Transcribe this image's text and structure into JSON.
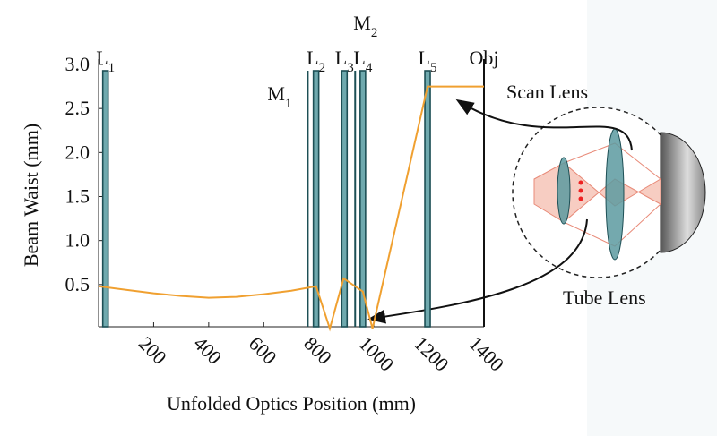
{
  "chart_data": {
    "type": "line",
    "x_label": "Unfolded Optics Position (mm)",
    "y_label": "Beam Waist (mm)",
    "x": [
      0,
      100,
      200,
      300,
      400,
      500,
      600,
      700,
      790,
      840,
      890,
      960,
      995,
      1195,
      1400
    ],
    "values": [
      0.48,
      0.44,
      0.4,
      0.37,
      0.35,
      0.36,
      0.39,
      0.43,
      0.48,
      0.0,
      0.57,
      0.42,
      0.0,
      2.75,
      2.75
    ],
    "color": "#f0a030",
    "xlim": [
      0,
      1400
    ],
    "ylim": [
      0,
      3
    ],
    "xticks": [
      200,
      400,
      600,
      800,
      1000,
      1200,
      1400
    ],
    "yticks": [
      0.5,
      {
        "value": 1,
        "label": "1.0"
      },
      1.5,
      {
        "value": 2,
        "label": "2.0"
      },
      2.5,
      {
        "value": 3,
        "label": "3.0"
      }
    ],
    "optics": [
      {
        "label": "L",
        "sub": "1",
        "kind": "lens",
        "x": 25
      },
      {
        "label": "M",
        "sub": "1",
        "kind": "mirror",
        "x": 760
      },
      {
        "label": "L",
        "sub": "2",
        "kind": "lens",
        "x": 790
      },
      {
        "label": "L",
        "sub": "3",
        "kind": "lens",
        "x": 893
      },
      {
        "label": "M",
        "sub": "2",
        "kind": "mirror",
        "x": 932
      },
      {
        "label": "L",
        "sub": "4",
        "kind": "lens",
        "x": 960
      },
      {
        "label": "L",
        "sub": "5",
        "kind": "lens",
        "x": 1195
      },
      {
        "label": "Obj",
        "kind": "objective",
        "x": 1400
      }
    ],
    "annotations": [
      "Scan Lens",
      "Tube Lens"
    ]
  }
}
